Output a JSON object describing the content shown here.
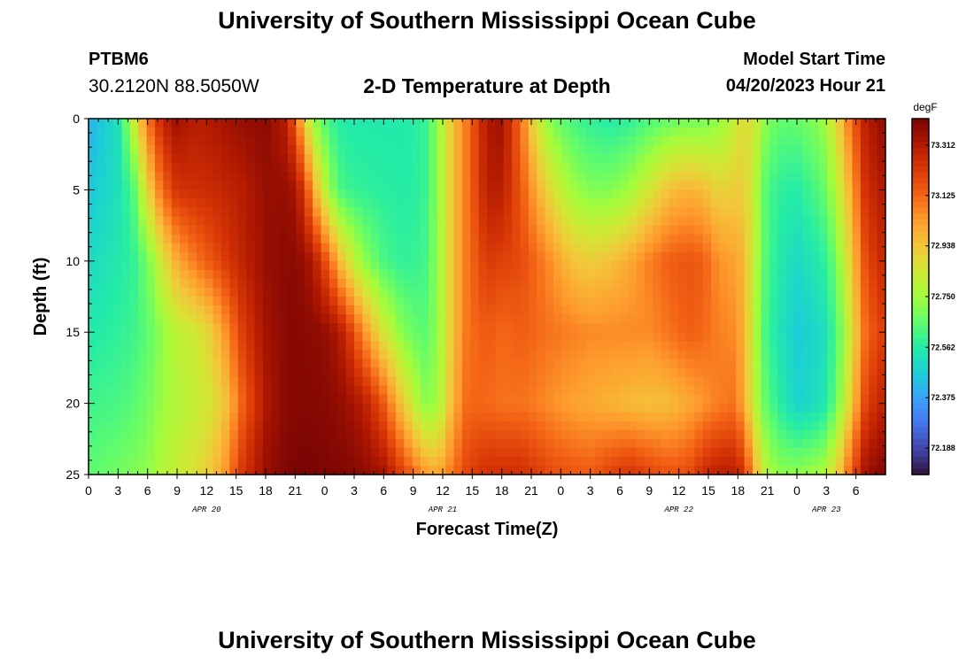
{
  "header": {
    "title": "University of Southern Mississippi Ocean Cube",
    "station_id": "PTBM6",
    "coordinates": "30.2120N  88.5050W",
    "plot_title": "2-D Temperature at Depth",
    "start_label": "Model Start Time",
    "start_value": "04/20/2023 Hour 21"
  },
  "footer": {
    "title": "University of Southern Mississippi Ocean Cube"
  },
  "chart_data": {
    "type": "heatmap",
    "title": "2-D Temperature at Depth",
    "xlabel": "Forecast Time(Z)",
    "ylabel": "Depth (ft)",
    "x_unit": "hours after 04/20/2023 00Z",
    "x_range": [
      0,
      81
    ],
    "x_ticks": [
      {
        "hour": 0,
        "label": "0"
      },
      {
        "hour": 3,
        "label": "3"
      },
      {
        "hour": 6,
        "label": "6"
      },
      {
        "hour": 9,
        "label": "9"
      },
      {
        "hour": 12,
        "label": "12"
      },
      {
        "hour": 15,
        "label": "15"
      },
      {
        "hour": 18,
        "label": "18"
      },
      {
        "hour": 21,
        "label": "21"
      },
      {
        "hour": 24,
        "label": "0"
      },
      {
        "hour": 27,
        "label": "3"
      },
      {
        "hour": 30,
        "label": "6"
      },
      {
        "hour": 33,
        "label": "9"
      },
      {
        "hour": 36,
        "label": "12"
      },
      {
        "hour": 39,
        "label": "15"
      },
      {
        "hour": 42,
        "label": "18"
      },
      {
        "hour": 45,
        "label": "21"
      },
      {
        "hour": 48,
        "label": "0"
      },
      {
        "hour": 51,
        "label": "3"
      },
      {
        "hour": 54,
        "label": "6"
      },
      {
        "hour": 57,
        "label": "9"
      },
      {
        "hour": 60,
        "label": "12"
      },
      {
        "hour": 63,
        "label": "15"
      },
      {
        "hour": 66,
        "label": "18"
      },
      {
        "hour": 69,
        "label": "21"
      },
      {
        "hour": 72,
        "label": "0"
      },
      {
        "hour": 75,
        "label": "3"
      },
      {
        "hour": 78,
        "label": "6"
      }
    ],
    "date_labels": [
      {
        "hour": 12,
        "label": "APR 20"
      },
      {
        "hour": 36,
        "label": "APR 21"
      },
      {
        "hour": 60,
        "label": "APR 22"
      },
      {
        "hour": 75,
        "label": "APR 23"
      }
    ],
    "depth_range": [
      0,
      25
    ],
    "depth_ticks": [
      0,
      5,
      10,
      15,
      20,
      25
    ],
    "colorbar": {
      "unit": "degF",
      "range": [
        72.09,
        73.41
      ],
      "ticks": [
        "73.312",
        "73.125",
        "72.938",
        "72.750",
        "72.562",
        "72.375",
        "72.188"
      ],
      "colormap": [
        "#30123b",
        "#4145ab",
        "#4675ed",
        "#39a2fc",
        "#1bcfd4",
        "#24eca6",
        "#61fc6c",
        "#a4fc3b",
        "#d1e834",
        "#f3c63a",
        "#fe9b2d",
        "#f36315",
        "#d93806",
        "#b11901",
        "#7a0403"
      ]
    },
    "series_description": "Temperature (degF) by forecast hour (rows) and depth levels 0,5,10,15,20,25 ft (columns)",
    "depth_levels": [
      0,
      5,
      10,
      15,
      20,
      25
    ],
    "rows": [
      {
        "hour": 0,
        "temps": [
          72.4,
          72.45,
          72.5,
          72.55,
          72.6,
          72.65
        ]
      },
      {
        "hour": 3,
        "temps": [
          72.52,
          72.52,
          72.55,
          72.58,
          72.62,
          72.68
        ]
      },
      {
        "hour": 4.5,
        "temps": [
          72.8,
          72.62,
          72.58,
          72.6,
          72.64,
          72.7
        ]
      },
      {
        "hour": 6,
        "temps": [
          73.1,
          72.9,
          72.68,
          72.65,
          72.68,
          72.72
        ]
      },
      {
        "hour": 7.5,
        "temps": [
          73.28,
          73.12,
          72.85,
          72.72,
          72.74,
          72.78
        ]
      },
      {
        "hour": 9,
        "temps": [
          73.35,
          73.24,
          73.0,
          72.8,
          72.78,
          72.82
        ]
      },
      {
        "hour": 11,
        "temps": [
          73.3,
          73.25,
          73.1,
          72.84,
          72.82,
          72.88
        ]
      },
      {
        "hour": 12.5,
        "temps": [
          73.32,
          73.26,
          73.16,
          72.92,
          72.86,
          72.94
        ]
      },
      {
        "hour": 14,
        "temps": [
          73.34,
          73.28,
          73.22,
          73.05,
          72.95,
          73.05
        ]
      },
      {
        "hour": 15.5,
        "temps": [
          73.36,
          73.3,
          73.28,
          73.2,
          73.12,
          73.22
        ]
      },
      {
        "hour": 18,
        "temps": [
          73.38,
          73.36,
          73.36,
          73.34,
          73.32,
          73.36
        ]
      },
      {
        "hour": 20,
        "temps": [
          73.3,
          73.36,
          73.38,
          73.38,
          73.38,
          73.4
        ]
      },
      {
        "hour": 21,
        "temps": [
          73.15,
          73.34,
          73.38,
          73.39,
          73.39,
          73.41
        ]
      },
      {
        "hour": 22,
        "temps": [
          72.9,
          73.2,
          73.36,
          73.38,
          73.39,
          73.41
        ]
      },
      {
        "hour": 23,
        "temps": [
          72.72,
          72.98,
          73.3,
          73.38,
          73.39,
          73.41
        ]
      },
      {
        "hour": 24.5,
        "temps": [
          72.6,
          72.72,
          73.12,
          73.36,
          73.38,
          73.4
        ]
      },
      {
        "hour": 26,
        "temps": [
          72.55,
          72.6,
          72.9,
          73.28,
          73.36,
          73.4
        ]
      },
      {
        "hour": 28,
        "temps": [
          72.55,
          72.58,
          72.72,
          73.05,
          73.3,
          73.38
        ]
      },
      {
        "hour": 30,
        "temps": [
          72.55,
          72.57,
          72.62,
          72.85,
          73.15,
          73.34
        ]
      },
      {
        "hour": 32,
        "temps": [
          72.55,
          72.56,
          72.58,
          72.7,
          72.92,
          73.2
        ]
      },
      {
        "hour": 34,
        "temps": [
          72.58,
          72.58,
          72.6,
          72.64,
          72.72,
          73.05
        ]
      },
      {
        "hour": 35.5,
        "temps": [
          72.72,
          72.72,
          72.72,
          72.72,
          72.74,
          73.0
        ]
      },
      {
        "hour": 37,
        "temps": [
          72.95,
          72.95,
          72.95,
          72.95,
          72.98,
          73.1
        ]
      },
      {
        "hour": 38.5,
        "temps": [
          73.1,
          73.1,
          73.1,
          73.1,
          73.12,
          73.2
        ]
      },
      {
        "hour": 40.5,
        "temps": [
          73.32,
          73.3,
          73.22,
          73.15,
          73.12,
          73.25
        ]
      },
      {
        "hour": 42,
        "temps": [
          73.35,
          73.3,
          73.2,
          73.12,
          73.1,
          73.25
        ]
      },
      {
        "hour": 44,
        "temps": [
          73.1,
          73.15,
          73.18,
          73.14,
          73.1,
          73.25
        ]
      },
      {
        "hour": 45.5,
        "temps": [
          72.85,
          73.0,
          73.12,
          73.12,
          73.08,
          73.22
        ]
      },
      {
        "hour": 47,
        "temps": [
          72.7,
          72.88,
          73.05,
          73.1,
          73.05,
          73.18
        ]
      },
      {
        "hour": 49,
        "temps": [
          72.62,
          72.75,
          72.95,
          73.08,
          73.02,
          73.16
        ]
      },
      {
        "hour": 51,
        "temps": [
          72.58,
          72.7,
          72.92,
          73.06,
          73.0,
          73.15
        ]
      },
      {
        "hour": 53,
        "temps": [
          72.56,
          72.7,
          72.95,
          73.06,
          72.98,
          73.2
        ]
      },
      {
        "hour": 55,
        "temps": [
          72.58,
          72.75,
          73.0,
          73.06,
          72.96,
          73.24
        ]
      },
      {
        "hour": 57,
        "temps": [
          72.62,
          72.85,
          73.08,
          73.06,
          72.95,
          73.2
        ]
      },
      {
        "hour": 59,
        "temps": [
          72.66,
          72.95,
          73.14,
          73.1,
          72.96,
          73.16
        ]
      },
      {
        "hour": 61,
        "temps": [
          72.68,
          72.98,
          73.16,
          73.14,
          73.0,
          73.18
        ]
      },
      {
        "hour": 62.5,
        "temps": [
          72.68,
          72.96,
          73.14,
          73.12,
          73.04,
          73.26
        ]
      },
      {
        "hour": 64,
        "temps": [
          72.72,
          72.9,
          73.05,
          73.08,
          73.08,
          73.3
        ]
      },
      {
        "hour": 65.5,
        "temps": [
          72.8,
          72.92,
          73.02,
          73.06,
          73.1,
          73.3
        ]
      },
      {
        "hour": 66.5,
        "temps": [
          72.88,
          72.92,
          72.98,
          73.0,
          73.02,
          73.25
        ]
      },
      {
        "hour": 67.5,
        "temps": [
          72.86,
          72.84,
          72.84,
          72.82,
          72.84,
          73.05
        ]
      },
      {
        "hour": 68.5,
        "temps": [
          72.74,
          72.66,
          72.66,
          72.64,
          72.68,
          72.82
        ]
      },
      {
        "hour": 70,
        "temps": [
          72.66,
          72.58,
          72.56,
          72.54,
          72.58,
          72.72
        ]
      },
      {
        "hour": 72,
        "temps": [
          72.66,
          72.56,
          72.5,
          72.46,
          72.48,
          72.72
        ]
      },
      {
        "hour": 74.5,
        "temps": [
          72.72,
          72.64,
          72.56,
          72.5,
          72.52,
          72.76
        ]
      },
      {
        "hour": 76,
        "temps": [
          72.88,
          72.78,
          72.68,
          72.62,
          72.66,
          72.9
        ]
      },
      {
        "hour": 77.5,
        "temps": [
          73.12,
          73.0,
          72.92,
          72.86,
          72.92,
          73.15
        ]
      },
      {
        "hour": 79,
        "temps": [
          73.3,
          73.25,
          73.18,
          73.12,
          73.2,
          73.35
        ]
      },
      {
        "hour": 81,
        "temps": [
          73.38,
          73.32,
          73.28,
          73.22,
          73.3,
          73.4
        ]
      }
    ]
  }
}
